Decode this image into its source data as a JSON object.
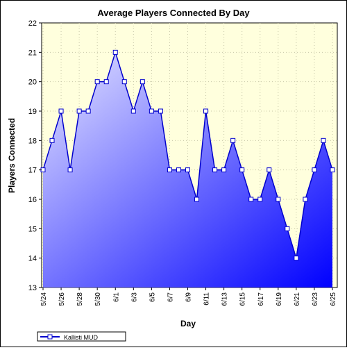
{
  "chart_data": {
    "type": "area",
    "title": "Average Players Connected By Day",
    "xlabel": "Day",
    "ylabel": "Players Connected",
    "ylim": [
      13,
      22
    ],
    "yticks": [
      "13",
      "14",
      "15",
      "16",
      "17",
      "18",
      "19",
      "20",
      "21",
      "22"
    ],
    "x": [
      "5/24",
      "5/25",
      "5/26",
      "5/27",
      "5/28",
      "5/29",
      "5/30",
      "5/31",
      "6/1",
      "6/2",
      "6/3",
      "6/4",
      "6/5",
      "6/6",
      "6/7",
      "6/8",
      "6/9",
      "6/10",
      "6/11",
      "6/12",
      "6/13",
      "6/14",
      "6/15",
      "6/16",
      "6/17",
      "6/18",
      "6/19",
      "6/20",
      "6/21",
      "6/22",
      "6/23",
      "6/24",
      "6/25"
    ],
    "xticks": [
      "5/24",
      "5/26",
      "5/28",
      "5/30",
      "6/1",
      "6/3",
      "6/5",
      "6/7",
      "6/9",
      "6/11",
      "6/13",
      "6/15",
      "6/17",
      "6/19",
      "6/21",
      "6/23",
      "6/25"
    ],
    "series": [
      {
        "name": "Kallisti MUD",
        "values": [
          17,
          18,
          19,
          17,
          19,
          19,
          20,
          20,
          21,
          20,
          19,
          20,
          19,
          19,
          17,
          17,
          17,
          16,
          19,
          17,
          17,
          18,
          17,
          16,
          16,
          17,
          16,
          15,
          14,
          16,
          17,
          18,
          17
        ]
      }
    ],
    "grid": true,
    "legend": "bottom-left",
    "colors": {
      "plot_background": "#ffffdd",
      "line": "#0000cc",
      "fill_top": "#e6e6ff",
      "fill_bottom": "#0000ff",
      "marker_fill": "#ffffff"
    }
  }
}
